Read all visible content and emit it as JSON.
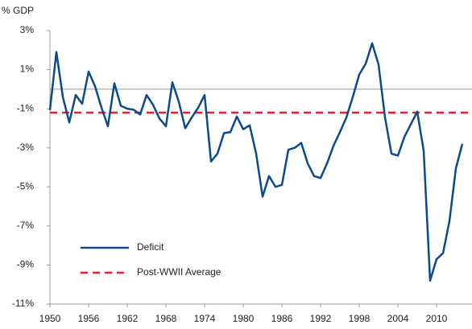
{
  "chart_data": {
    "type": "line",
    "y_label": "% GDP",
    "x": [
      1950,
      1951,
      1952,
      1953,
      1954,
      1955,
      1956,
      1957,
      1958,
      1959,
      1960,
      1961,
      1962,
      1963,
      1964,
      1965,
      1966,
      1967,
      1968,
      1969,
      1970,
      1971,
      1972,
      1973,
      1974,
      1975,
      1976,
      1977,
      1978,
      1979,
      1980,
      1981,
      1982,
      1983,
      1984,
      1985,
      1986,
      1987,
      1988,
      1989,
      1990,
      1991,
      1992,
      1993,
      1994,
      1995,
      1996,
      1997,
      1998,
      1999,
      2000,
      2001,
      2002,
      2003,
      2004,
      2005,
      2006,
      2007,
      2008,
      2009,
      2010,
      2011,
      2012,
      2013,
      2014
    ],
    "series": [
      {
        "name": "Deficit",
        "color": "#0b4a8b",
        "values": [
          -1.07,
          1.9,
          -0.4,
          -1.7,
          -0.3,
          -0.75,
          0.9,
          0.15,
          -0.95,
          -1.9,
          0.3,
          -0.85,
          -1.0,
          -1.05,
          -1.3,
          -0.3,
          -0.8,
          -1.5,
          -1.9,
          0.35,
          -0.65,
          -2.0,
          -1.45,
          -0.95,
          -0.3,
          -3.7,
          -3.3,
          -2.25,
          -2.2,
          -1.4,
          -2.05,
          -1.85,
          -3.3,
          -5.5,
          -4.45,
          -5.0,
          -4.9,
          -3.1,
          -3.0,
          -2.75,
          -3.8,
          -4.45,
          -4.55,
          -3.8,
          -2.9,
          -2.2,
          -1.45,
          -0.4,
          0.75,
          1.3,
          2.35,
          1.25,
          -1.45,
          -3.3,
          -3.4,
          -2.45,
          -1.8,
          -1.15,
          -3.15,
          -9.8,
          -8.7,
          -8.4,
          -6.75,
          -4.05,
          -2.8
        ]
      }
    ],
    "reference_lines": [
      {
        "name": "Post-WWII Average",
        "value": -1.2,
        "color": "#e8202a",
        "dashed": true
      }
    ],
    "xlim": [
      1950,
      2015.5
    ],
    "xticks": [
      1950,
      1956,
      1962,
      1968,
      1974,
      1980,
      1986,
      1992,
      1998,
      2004,
      2010
    ],
    "ylim": [
      -11,
      3
    ],
    "yticks": [
      {
        "value": 3,
        "label": "3%"
      },
      {
        "value": 1,
        "label": "1%"
      },
      {
        "value": -1,
        "label": "-1%"
      },
      {
        "value": -3,
        "label": "-3%"
      },
      {
        "value": -5,
        "label": "-5%"
      },
      {
        "value": -7,
        "label": "-7%"
      },
      {
        "value": -9,
        "label": "-9%"
      },
      {
        "value": -11,
        "label": "-11%"
      }
    ],
    "legend": "lower-left"
  }
}
